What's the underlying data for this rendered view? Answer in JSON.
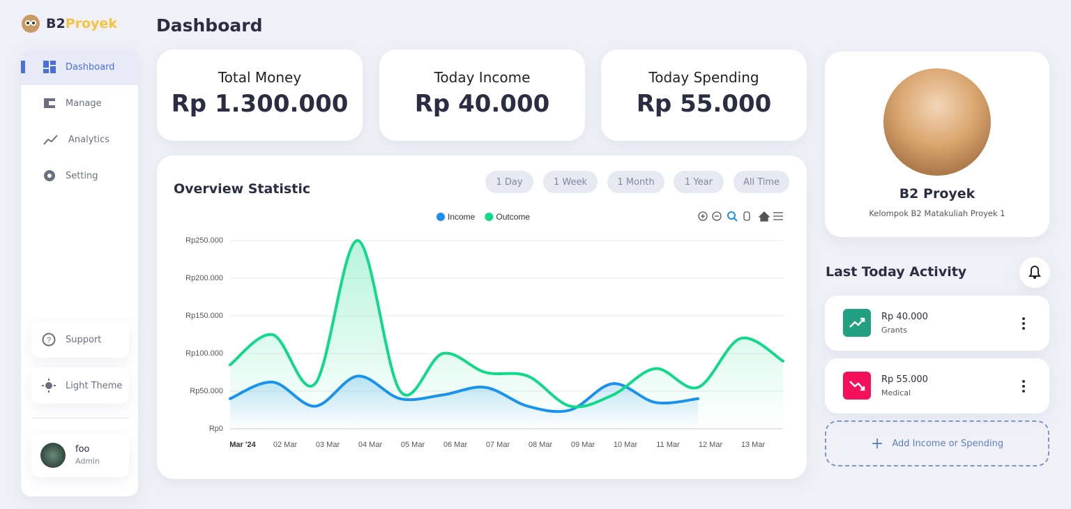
{
  "brand": {
    "prefix": "B2",
    "suffix": "Proyek"
  },
  "nav": [
    "Dashboard",
    "Manage",
    "Analytics",
    "Setting"
  ],
  "support": "Support",
  "theme": "Light Theme",
  "user": {
    "name": "foo",
    "role": "Admin"
  },
  "header": {
    "title": "Dashboard"
  },
  "stats": [
    {
      "label": "Total Money",
      "value": "Rp 1.300.000"
    },
    {
      "label": "Today Income",
      "value": "Rp 40.000"
    },
    {
      "label": "Today Spending",
      "value": "Rp 55.000"
    }
  ],
  "range_buttons": [
    "1 Day",
    "1 Week",
    "1 Month",
    "1 Year",
    "All Time"
  ],
  "chart_data": {
    "type": "line",
    "title": "Overview Statistic",
    "categories": [
      "Mar '24",
      "02 Mar",
      "03 Mar",
      "04 Mar",
      "05 Mar",
      "06 Mar",
      "07 Mar",
      "08 Mar",
      "09 Mar",
      "10 Mar",
      "11 Mar",
      "12 Mar",
      "13 Mar",
      null
    ],
    "series": [
      {
        "name": "Income",
        "color": "#1a8ff0",
        "values": [
          40000,
          62000,
          30000,
          70000,
          40000,
          45000,
          55000,
          30000,
          25000,
          60000,
          35000,
          40000,
          null,
          null
        ]
      },
      {
        "name": "Outcome",
        "color": "#10d98a",
        "values": [
          85000,
          125000,
          60000,
          250000,
          50000,
          100000,
          75000,
          70000,
          30000,
          45000,
          80000,
          55000,
          120000,
          90000
        ]
      }
    ],
    "ylim": [
      0,
      250000
    ],
    "yticks": [
      {
        "value": 0,
        "label": "Rp0"
      },
      {
        "value": 50000,
        "label": "Rp50.000"
      },
      {
        "value": 100000,
        "label": "Rp100.000"
      },
      {
        "value": 150000,
        "label": "Rp150.000"
      },
      {
        "value": 200000,
        "label": "Rp200.000"
      },
      {
        "value": 250000,
        "label": "Rp250.000"
      }
    ],
    "grid": true,
    "legend": "top"
  },
  "profile": {
    "name": "B2 Proyek",
    "subtitle": "Kelompok B2 Matakuliah Proyek 1"
  },
  "activity": {
    "title": "Last Today Activity",
    "items": [
      {
        "amount": "Rp 40.000",
        "category": "Grants"
      },
      {
        "amount": "Rp 55.000",
        "category": "Medical"
      }
    ],
    "add": "Add Income or Spending"
  }
}
